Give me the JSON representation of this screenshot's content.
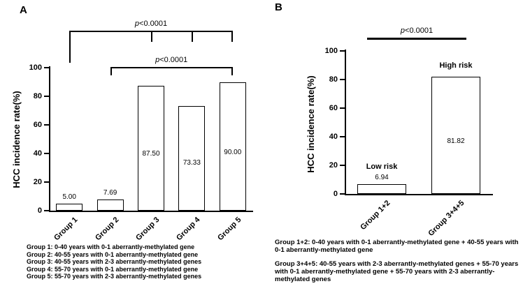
{
  "figure": {
    "panel_a_label": "A",
    "panel_b_label": "B",
    "background": "#ffffff"
  },
  "chart_data": [
    {
      "type": "bar",
      "panel": "A",
      "title": "",
      "ylabel": "HCC incidence rate(%)",
      "xlabel": "",
      "ylim": [
        0,
        100
      ],
      "yticks": [
        0,
        20,
        40,
        60,
        80,
        100
      ],
      "categories": [
        "Group 1",
        "Group 2",
        "Group 3",
        "Group 4",
        "Group 5"
      ],
      "values": [
        5.0,
        7.69,
        87.5,
        73.33,
        90.0
      ],
      "value_labels": [
        "5.00",
        "7.69",
        "87.50",
        "73.33",
        "90.00"
      ],
      "bar_annotations": [
        "",
        "",
        "",
        "",
        ""
      ],
      "significance": [
        {
          "label": "p<0.0001",
          "span": [
            "Group 1",
            "Group 5"
          ]
        },
        {
          "label": "p<0.0001",
          "span": [
            "Group 2",
            "Group 5"
          ]
        }
      ],
      "grid": false,
      "legend_position": "none",
      "bar_fill": "#ffffff",
      "bar_border": "#000000"
    },
    {
      "type": "bar",
      "panel": "B",
      "title": "",
      "ylabel": "HCC incidence rate(%)",
      "xlabel": "",
      "ylim": [
        0,
        100
      ],
      "yticks": [
        0,
        20,
        40,
        60,
        80,
        100
      ],
      "categories": [
        "Group 1+2",
        "Group 3+4+5"
      ],
      "values": [
        6.94,
        81.82
      ],
      "value_labels": [
        "6.94",
        "81.82"
      ],
      "bar_annotations": [
        "Low risk",
        "High risk"
      ],
      "significance": [
        {
          "label": "p<0.0001",
          "span": [
            "Group 1+2",
            "Group 3+4+5"
          ]
        }
      ],
      "grid": false,
      "legend_position": "none",
      "bar_fill": "#ffffff",
      "bar_border": "#000000"
    }
  ],
  "footnotes": {
    "panel_a": [
      "Group 1: 0-40 years with 0-1 aberrantly-methylated gene",
      "Group 2: 40-55 years with 0-1 aberrantly-methylated gene",
      "Group 3: 40-55 years with 2-3 aberrantly-methylated genes",
      "Group 4: 55-70 years with 0-1 aberrantly-methylated gene",
      "Group 5: 55-70 years with 2-3 aberrantly-methylated genes"
    ],
    "panel_b": [
      "Group 1+2: 0-40 years with 0-1 aberrantly-methylated gene + 40-55 years with 0-1 aberrantly-methylated gene",
      "Group 3+4+5: 40-55 years with 2-3 aberrantly-methylated genes + 55-70 years with 0-1 aberrantly-methylated gene + 55-70 years with 2-3 aberrantly-methylated genes"
    ]
  }
}
